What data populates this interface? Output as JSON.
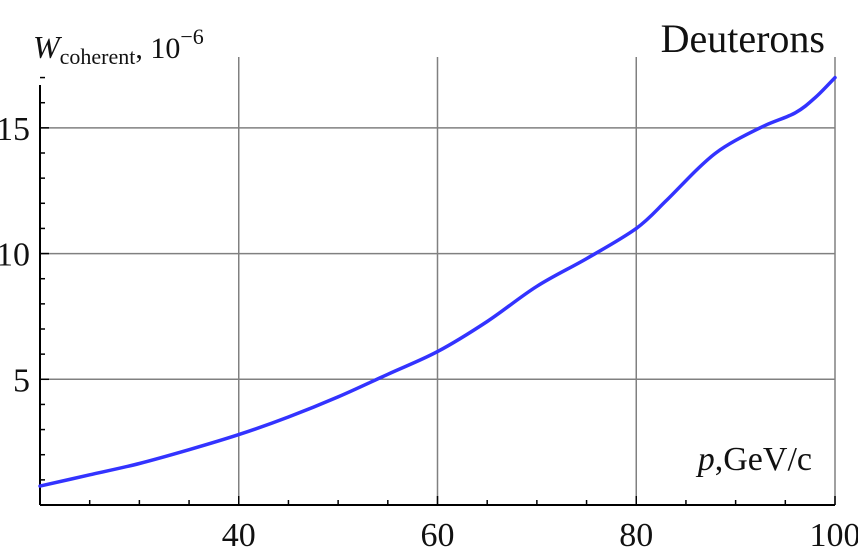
{
  "chart_data": {
    "type": "line",
    "title": "Deuterons",
    "ylabel": {
      "symbol": "W",
      "subscript": "coherent",
      "unit_base": ", 10",
      "unit_exponent": "−6"
    },
    "xlabel": {
      "symbol": "p",
      "unit": ",GeV/c"
    },
    "xlim": [
      20,
      100
    ],
    "ylim": [
      0,
      17.5
    ],
    "xticks": [
      40,
      60,
      80,
      100
    ],
    "yticks": [
      5,
      10,
      15
    ],
    "grid": true,
    "colors": {
      "line": "#3333ff",
      "grid": "#808080",
      "axis": "#000000"
    },
    "series": [
      {
        "x": [
          20,
          25,
          30,
          35,
          40,
          45,
          50,
          55,
          60,
          65,
          70,
          75,
          80,
          83,
          86,
          88,
          90,
          93,
          96,
          98,
          100
        ],
        "values": [
          0.75,
          1.2,
          1.65,
          2.2,
          2.8,
          3.5,
          4.3,
          5.2,
          6.1,
          7.3,
          8.7,
          9.8,
          11.0,
          12.1,
          13.3,
          14.0,
          14.5,
          15.1,
          15.6,
          16.2,
          17.0
        ]
      }
    ]
  }
}
